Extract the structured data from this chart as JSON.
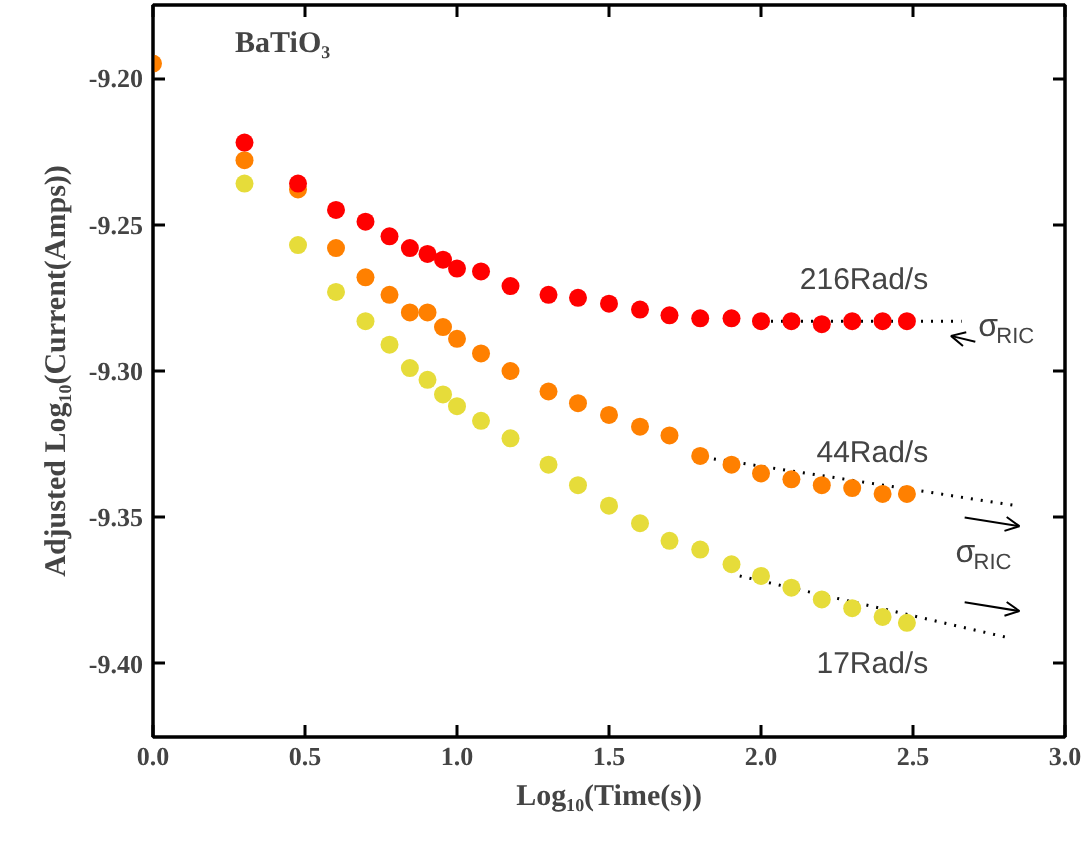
{
  "chart_data": {
    "type": "scatter",
    "title": "BaTiO₃",
    "xlabel": "Log₁₀(Time(s))",
    "ylabel": "Adjusted Log₁₀(Current(Amps))",
    "x": [
      0,
      0.301,
      0.477,
      0.602,
      0.699,
      0.778,
      0.845,
      0.903,
      0.954,
      1.0,
      1.079,
      1.176,
      1.301,
      1.398,
      1.5,
      1.602,
      1.699,
      1.8,
      1.903,
      2.0,
      2.1,
      2.2,
      2.3,
      2.4,
      2.48
    ],
    "series": [
      {
        "name": "216Rad/s",
        "color": "#ff0000",
        "values": [
          null,
          -9.222,
          -9.236,
          -9.245,
          -9.249,
          -9.254,
          -9.258,
          -9.26,
          -9.262,
          -9.265,
          -9.266,
          -9.271,
          -9.274,
          -9.275,
          -9.277,
          -9.279,
          -9.281,
          -9.282,
          -9.282,
          -9.283,
          -9.283,
          -9.284,
          -9.283,
          -9.283,
          -9.283
        ]
      },
      {
        "name": "44Rad/s",
        "color": "#ff8000",
        "values": [
          -9.195,
          -9.228,
          -9.238,
          -9.258,
          -9.268,
          -9.274,
          -9.28,
          -9.28,
          -9.285,
          -9.289,
          -9.294,
          -9.3,
          -9.307,
          -9.311,
          -9.315,
          -9.319,
          -9.322,
          -9.329,
          -9.332,
          -9.335,
          -9.337,
          -9.339,
          -9.34,
          -9.342,
          -9.342
        ]
      },
      {
        "name": "17Rad/s",
        "color": "#e6dc3a",
        "values": [
          null,
          -9.236,
          -9.257,
          -9.273,
          -9.283,
          -9.291,
          -9.299,
          -9.303,
          -9.308,
          -9.312,
          -9.317,
          -9.323,
          -9.332,
          -9.339,
          -9.346,
          -9.352,
          -9.358,
          -9.361,
          -9.366,
          -9.37,
          -9.374,
          -9.378,
          -9.381,
          -9.384,
          -9.386
        ]
      },
      {
        "type": "line",
        "color": "#000000",
        "line_style": "dotted",
        "marker": "none",
        "x": [
          2.0,
          2.66
        ],
        "values": [
          -9.283,
          -9.283
        ]
      },
      {
        "type": "line",
        "color": "#000000",
        "line_style": "dotted",
        "marker": "none",
        "x": [
          1.78,
          2.84
        ],
        "values": [
          -9.329,
          -9.346
        ]
      },
      {
        "type": "line",
        "color": "#000000",
        "line_style": "dotted",
        "marker": "none",
        "x": [
          1.93,
          2.81
        ],
        "values": [
          -9.37,
          -9.391
        ]
      }
    ],
    "annotations": [
      "σ$_{RIC}$",
      "σ$_{RIC}$"
    ],
    "marker": "circle",
    "grid": false,
    "legend": false,
    "xlim": [
      0,
      3.0
    ],
    "ylim": [
      -9.425,
      -9.175
    ],
    "xticks": [
      {
        "value": 0,
        "label": "0.0"
      },
      0.5,
      {
        "value": 1,
        "label": "1.0"
      },
      1.5,
      {
        "value": 2,
        "label": "2.0"
      },
      2.5,
      {
        "value": 3,
        "label": "3.0"
      }
    ],
    "yticks": [
      {
        "value": -9.2,
        "label": "-9.20"
      },
      -9.25,
      {
        "value": -9.3,
        "label": "-9.30"
      },
      -9.35,
      {
        "value": -9.4,
        "label": "-9.40"
      }
    ]
  }
}
